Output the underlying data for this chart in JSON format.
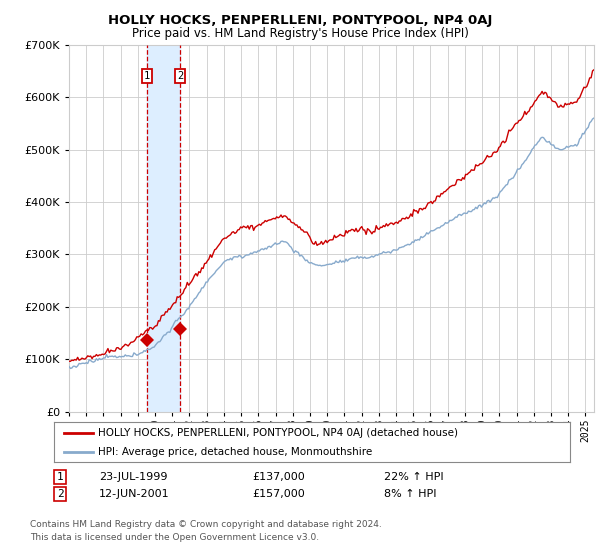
{
  "title": "HOLLY HOCKS, PENPERLLENI, PONTYPOOL, NP4 0AJ",
  "subtitle": "Price paid vs. HM Land Registry's House Price Index (HPI)",
  "legend_line1": "HOLLY HOCKS, PENPERLLENI, PONTYPOOL, NP4 0AJ (detached house)",
  "legend_line2": "HPI: Average price, detached house, Monmouthshire",
  "annotation1_label": "1",
  "annotation1_date": "23-JUL-1999",
  "annotation1_price": "£137,000",
  "annotation1_hpi": "22% ↑ HPI",
  "annotation2_label": "2",
  "annotation2_date": "12-JUN-2001",
  "annotation2_price": "£157,000",
  "annotation2_hpi": "8% ↑ HPI",
  "footnote_line1": "Contains HM Land Registry data © Crown copyright and database right 2024.",
  "footnote_line2": "This data is licensed under the Open Government Licence v3.0.",
  "red_color": "#cc0000",
  "blue_color": "#88aacc",
  "shade_color": "#ddeeff",
  "background_color": "#ffffff",
  "grid_color": "#cccccc",
  "ylim": [
    0,
    700000
  ],
  "yticks": [
    0,
    100000,
    200000,
    300000,
    400000,
    500000,
    600000,
    700000
  ],
  "sale1_x": 1999.55,
  "sale1_y": 137000,
  "sale2_x": 2001.45,
  "sale2_y": 157000,
  "vline1_x": 1999.55,
  "vline2_x": 2001.45,
  "shade_x1": 1999.55,
  "shade_x2": 2001.45,
  "xmin": 1995.0,
  "xmax": 2025.5
}
